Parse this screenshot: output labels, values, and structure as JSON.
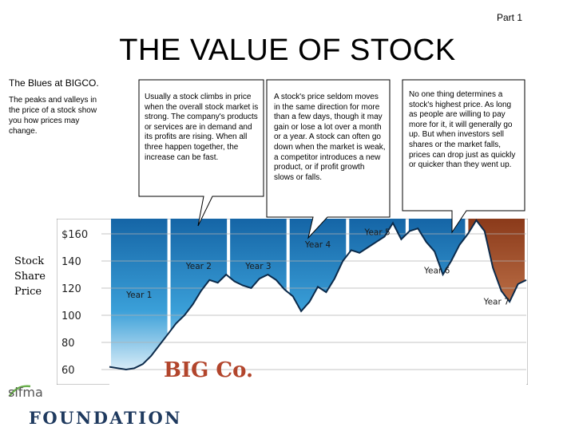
{
  "header": {
    "part_label": "Part 1",
    "title": "THE VALUE OF STOCK"
  },
  "sidebar": {
    "heading": "The Blues at BIGCO.",
    "text": "The peaks and valleys in the price of a stock show you how prices may change."
  },
  "callouts": [
    {
      "text": "Usually a stock climbs in price when the overall stock market is strong. The company's products or services are in demand and its profits are rising. When all three happen together, the increase can be fast."
    },
    {
      "text": "A stock's price seldom moves in the same direction for more than a few days, though it may gain or lose a lot over a month or a year. A stock can often go down when the market is weak, a competitor introduces a new product, or if profit growth slows or falls."
    },
    {
      "text": "No one thing determines a stock's highest price. As long as people are willing to pay more for it, it will generally go up. But when investors sell shares or the market falls, prices can drop just as quickly or quicker than they went up."
    }
  ],
  "y_axis_label": "Stock Share Price",
  "logo": {
    "small": "sifma",
    "big": "FOUNDATION"
  },
  "colors": {
    "accent_blue": "#3a9fd8",
    "deep_blue": "#1565a6",
    "year7_brown": "#8b3a1a",
    "grid": "#b0b0b0",
    "chart_bg": "#ffffff",
    "brand_red": "#b2452c"
  },
  "chart_data": {
    "type": "area",
    "company_label": "BIG Co.",
    "ylim": [
      50,
      170
    ],
    "y_ticks": [
      "$160",
      "140",
      "120",
      "100",
      "80",
      "60"
    ],
    "y_tick_values": [
      160,
      140,
      120,
      100,
      80,
      60
    ],
    "grid": true,
    "years": [
      "Year 1",
      "Year 2",
      "Year 3",
      "Year 4",
      "Year 5",
      "Year 6",
      "Year 7"
    ],
    "series": [
      {
        "x": [
          0,
          2,
          4,
          6,
          8,
          10,
          12,
          14,
          16,
          18,
          20,
          22,
          24,
          26,
          28,
          30,
          32,
          34,
          36,
          38,
          40,
          42,
          44,
          46,
          48,
          50,
          52,
          54,
          56,
          58,
          60,
          62,
          64,
          66,
          68,
          70,
          72,
          74,
          76,
          78,
          80,
          82,
          84,
          86,
          88,
          90,
          92,
          94,
          96,
          98,
          100
        ],
        "values": [
          62,
          61,
          60,
          61,
          64,
          70,
          78,
          86,
          94,
          100,
          108,
          118,
          126,
          124,
          130,
          125,
          122,
          120,
          127,
          130,
          126,
          119,
          114,
          103,
          110,
          121,
          117,
          127,
          140,
          148,
          146,
          150,
          154,
          158,
          168,
          156,
          162,
          164,
          154,
          147,
          130,
          140,
          152,
          160,
          170,
          162,
          135,
          118,
          110,
          123,
          126
        ]
      }
    ],
    "year_label_values": [
      113,
      134,
      134,
      150,
      159,
      131,
      108
    ]
  }
}
